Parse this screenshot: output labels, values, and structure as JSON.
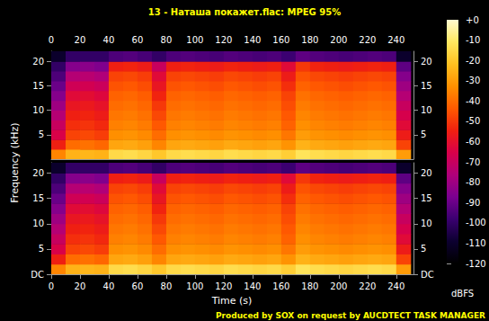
{
  "chart_data": {
    "type": "heatmap",
    "title": "13 - Наташа покажет.flac: MPEG 95%",
    "x_label": "Time (s)",
    "y_label": "Frequency (kHz)",
    "footer": "Produced by SOX on request by AUCDTECT TASK MANAGER",
    "xlim": [
      0,
      252
    ],
    "xticks": [
      0,
      20,
      40,
      60,
      80,
      100,
      120,
      140,
      160,
      180,
      200,
      220,
      240
    ],
    "ylim": [
      0,
      22.05
    ],
    "time_bins": [
      0,
      10,
      20,
      30,
      40,
      50,
      60,
      70,
      80,
      90,
      100,
      110,
      120,
      130,
      140,
      150,
      160,
      170,
      180,
      190,
      200,
      210,
      220,
      230,
      240,
      250
    ],
    "freq_bins": [
      0,
      2,
      4,
      6,
      8,
      10,
      12,
      14,
      16,
      18,
      20,
      22.05
    ],
    "colorbar": {
      "label": "dBFS",
      "range": [
        -120,
        0
      ],
      "ticks": [
        {
          "value": 0,
          "label": "+0"
        },
        -10,
        -20,
        -30,
        -40,
        -50,
        -60,
        -70,
        -80,
        -90,
        -100,
        -110,
        -120
      ]
    },
    "panels": [
      {
        "yticks": [
          5,
          10,
          15,
          20
        ],
        "cells_db": [
          [
            -35,
            -55,
            -65,
            -70,
            -75,
            -80,
            -85,
            -90,
            -95,
            -100,
            -110
          ],
          [
            -25,
            -40,
            -48,
            -52,
            -55,
            -58,
            -62,
            -68,
            -75,
            -85,
            -100
          ],
          [
            -24,
            -39,
            -47,
            -51,
            -54,
            -57,
            -61,
            -67,
            -74,
            -84,
            -100
          ],
          [
            -25,
            -41,
            -49,
            -53,
            -56,
            -59,
            -63,
            -69,
            -76,
            -86,
            -100
          ],
          [
            -15,
            -28,
            -33,
            -36,
            -38,
            -40,
            -42,
            -45,
            -48,
            -55,
            -95
          ],
          [
            -14,
            -27,
            -32,
            -35,
            -37,
            -39,
            -41,
            -44,
            -47,
            -54,
            -94
          ],
          [
            -16,
            -29,
            -34,
            -37,
            -39,
            -41,
            -43,
            -46,
            -49,
            -56,
            -96
          ],
          [
            -20,
            -35,
            -40,
            -44,
            -47,
            -50,
            -54,
            -58,
            -62,
            -70,
            -100
          ],
          [
            -15,
            -28,
            -33,
            -36,
            -38,
            -40,
            -42,
            -45,
            -48,
            -55,
            -95
          ],
          [
            -14,
            -27,
            -32,
            -35,
            -37,
            -39,
            -41,
            -44,
            -47,
            -54,
            -94
          ],
          [
            -15,
            -28,
            -33,
            -36,
            -38,
            -40,
            -42,
            -45,
            -48,
            -55,
            -95
          ],
          [
            -16,
            -29,
            -34,
            -37,
            -39,
            -41,
            -43,
            -46,
            -49,
            -56,
            -96
          ],
          [
            -14,
            -27,
            -32,
            -35,
            -37,
            -39,
            -41,
            -44,
            -47,
            -54,
            -94
          ],
          [
            -15,
            -28,
            -33,
            -36,
            -38,
            -40,
            -42,
            -45,
            -48,
            -55,
            -95
          ],
          [
            -16,
            -29,
            -34,
            -37,
            -39,
            -41,
            -43,
            -46,
            -49,
            -56,
            -96
          ],
          [
            -15,
            -28,
            -33,
            -36,
            -38,
            -40,
            -42,
            -45,
            -48,
            -55,
            -95
          ],
          [
            -18,
            -32,
            -38,
            -42,
            -44,
            -46,
            -48,
            -52,
            -56,
            -62,
            -98
          ],
          [
            -12,
            -25,
            -30,
            -33,
            -35,
            -37,
            -39,
            -42,
            -45,
            -50,
            -92
          ],
          [
            -14,
            -27,
            -32,
            -35,
            -37,
            -39,
            -41,
            -44,
            -47,
            -54,
            -94
          ],
          [
            -15,
            -28,
            -33,
            -36,
            -38,
            -40,
            -42,
            -45,
            -48,
            -55,
            -95
          ],
          [
            -16,
            -29,
            -34,
            -37,
            -39,
            -41,
            -43,
            -46,
            -49,
            -56,
            -96
          ],
          [
            -15,
            -28,
            -33,
            -36,
            -38,
            -40,
            -42,
            -45,
            -48,
            -55,
            -95
          ],
          [
            -14,
            -27,
            -32,
            -35,
            -37,
            -39,
            -41,
            -44,
            -47,
            -54,
            -94
          ],
          [
            -15,
            -28,
            -33,
            -36,
            -38,
            -40,
            -42,
            -45,
            -48,
            -55,
            -95
          ],
          [
            -30,
            -48,
            -56,
            -62,
            -66,
            -70,
            -75,
            -80,
            -85,
            -92,
            -110
          ]
        ]
      },
      {
        "yticks": [
          {
            "value": 0,
            "label": "DC"
          },
          5,
          10,
          15,
          20
        ],
        "cells_db": [
          [
            -35,
            -55,
            -65,
            -70,
            -75,
            -80,
            -85,
            -90,
            -95,
            -100,
            -110
          ],
          [
            -25,
            -40,
            -48,
            -52,
            -55,
            -58,
            -62,
            -68,
            -75,
            -85,
            -100
          ],
          [
            -24,
            -39,
            -47,
            -51,
            -54,
            -57,
            -61,
            -67,
            -74,
            -84,
            -100
          ],
          [
            -25,
            -41,
            -49,
            -53,
            -56,
            -59,
            -63,
            -69,
            -76,
            -86,
            -100
          ],
          [
            -15,
            -28,
            -33,
            -36,
            -38,
            -40,
            -42,
            -45,
            -48,
            -55,
            -95
          ],
          [
            -14,
            -27,
            -32,
            -35,
            -37,
            -39,
            -41,
            -44,
            -47,
            -54,
            -94
          ],
          [
            -16,
            -29,
            -34,
            -37,
            -39,
            -41,
            -43,
            -46,
            -49,
            -56,
            -96
          ],
          [
            -20,
            -35,
            -40,
            -44,
            -47,
            -50,
            -54,
            -58,
            -62,
            -70,
            -100
          ],
          [
            -15,
            -28,
            -33,
            -36,
            -38,
            -40,
            -42,
            -45,
            -48,
            -55,
            -95
          ],
          [
            -14,
            -27,
            -32,
            -35,
            -37,
            -39,
            -41,
            -44,
            -47,
            -54,
            -94
          ],
          [
            -15,
            -28,
            -33,
            -36,
            -38,
            -40,
            -42,
            -45,
            -48,
            -55,
            -95
          ],
          [
            -16,
            -29,
            -34,
            -37,
            -39,
            -41,
            -43,
            -46,
            -49,
            -56,
            -96
          ],
          [
            -14,
            -27,
            -32,
            -35,
            -37,
            -39,
            -41,
            -44,
            -47,
            -54,
            -94
          ],
          [
            -15,
            -28,
            -33,
            -36,
            -38,
            -40,
            -42,
            -45,
            -48,
            -55,
            -95
          ],
          [
            -16,
            -29,
            -34,
            -37,
            -39,
            -41,
            -43,
            -46,
            -49,
            -56,
            -96
          ],
          [
            -15,
            -28,
            -33,
            -36,
            -38,
            -40,
            -42,
            -45,
            -48,
            -55,
            -95
          ],
          [
            -18,
            -32,
            -38,
            -42,
            -44,
            -46,
            -48,
            -52,
            -56,
            -62,
            -98
          ],
          [
            -12,
            -25,
            -30,
            -33,
            -35,
            -37,
            -39,
            -42,
            -45,
            -50,
            -92
          ],
          [
            -14,
            -27,
            -32,
            -35,
            -37,
            -39,
            -41,
            -44,
            -47,
            -54,
            -94
          ],
          [
            -15,
            -28,
            -33,
            -36,
            -38,
            -40,
            -42,
            -45,
            -48,
            -55,
            -95
          ],
          [
            -16,
            -29,
            -34,
            -37,
            -39,
            -41,
            -43,
            -46,
            -49,
            -56,
            -96
          ],
          [
            -15,
            -28,
            -33,
            -36,
            -38,
            -40,
            -42,
            -45,
            -48,
            -55,
            -95
          ],
          [
            -14,
            -27,
            -32,
            -35,
            -37,
            -39,
            -41,
            -44,
            -47,
            -54,
            -94
          ],
          [
            -15,
            -28,
            -33,
            -36,
            -38,
            -40,
            -42,
            -45,
            -48,
            -55,
            -95
          ],
          [
            -30,
            -48,
            -56,
            -62,
            -66,
            -70,
            -75,
            -80,
            -85,
            -92,
            -110
          ]
        ]
      }
    ]
  }
}
